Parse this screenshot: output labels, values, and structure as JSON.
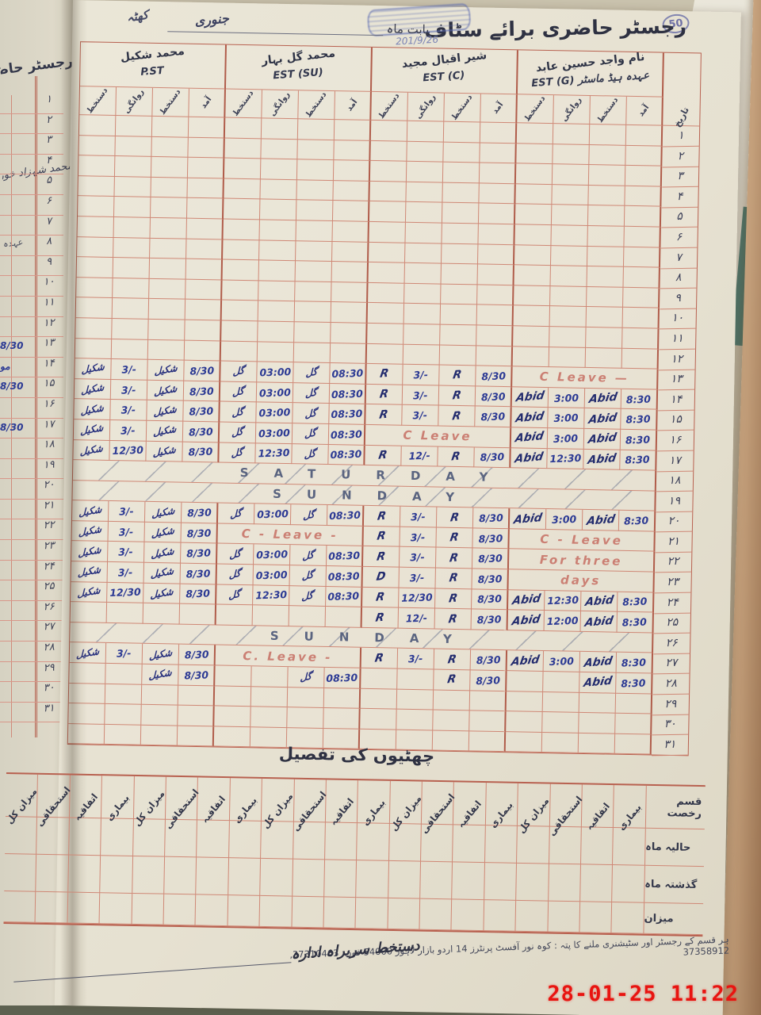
{
  "meta": {
    "camera_timestamp": "28-01-25  11:22"
  },
  "register": {
    "page_number": "50",
    "title": "رجسٹر حاضری برائے سٹاف",
    "month_prefix": "بابت ماہ",
    "month_value": "جنوری",
    "month_extra": "کھٹہ",
    "stamp_date": "201/9/26",
    "date_header": "تاریخ",
    "sub_headers_rtl": [
      "آمد",
      "دستخط",
      "روانگی",
      "دستخط"
    ],
    "staff": [
      {
        "name": "محمد شکیل",
        "designation": "P.ST",
        "sig": "شکیل"
      },
      {
        "name": "محمد گل بہار",
        "designation": "EST (SU)",
        "sig": "گل"
      },
      {
        "name": "شیر اقبال مجید",
        "designation": "EST (C)",
        "sig": "R"
      },
      {
        "name": "واجد حسین عابد",
        "designation": "ہیڈ ماسٹر  EST (G)",
        "sig": "Abid",
        "name_label": "نام",
        "designation_label": "عہدہ"
      }
    ],
    "dates": [
      "۱",
      "۲",
      "۳",
      "۴",
      "۵",
      "۶",
      "۷",
      "۸",
      "۹",
      "۱۰",
      "۱۱",
      "۱۲",
      "۱۳",
      "۱۴",
      "۱۵",
      "۱۶",
      "۱۷",
      "۱۸",
      "۱۹",
      "۲۰",
      "۲۱",
      "۲۲",
      "۲۳",
      "۲۴",
      "۲۵",
      "۲۶",
      "۲۷",
      "۲۸",
      "۲۹",
      "۳۰",
      "۳۱"
    ],
    "rows_by_date": {
      "13": {
        "pst": [
          "شکیل",
          "3/-",
          "شکیل",
          "8/30"
        ],
        "su": [
          "گل",
          "03:00",
          "گل",
          "08:30"
        ],
        "c": [
          "R",
          "3/-",
          "R",
          "8/30"
        ],
        "g": {
          "leave": "C Leave —"
        }
      },
      "14": {
        "pst": [
          "شکیل",
          "3/-",
          "شکیل",
          "8/30"
        ],
        "su": [
          "گل",
          "03:00",
          "گل",
          "08:30"
        ],
        "c": [
          "R",
          "3/-",
          "R",
          "8/30"
        ],
        "g": [
          "Abid",
          "3:00",
          "Abid",
          "8:30"
        ]
      },
      "15": {
        "pst": [
          "شکیل",
          "3/-",
          "شکیل",
          "8/30"
        ],
        "su": [
          "گل",
          "03:00",
          "گل",
          "08:30"
        ],
        "c": [
          "R",
          "3/-",
          "R",
          "8/30"
        ],
        "g": [
          "Abid",
          "3:00",
          "Abid",
          "8:30"
        ]
      },
      "16": {
        "pst": [
          "شکیل",
          "3/-",
          "شکیل",
          "8/30"
        ],
        "su": [
          "گل",
          "03:00",
          "گل",
          "08:30"
        ],
        "c": {
          "leave": "C Leave"
        },
        "g": [
          "Abid",
          "3:00",
          "Abid",
          "8:30"
        ]
      },
      "17": {
        "pst": [
          "شکیل",
          "12/30",
          "شکیل",
          "8/30"
        ],
        "su": [
          "گل",
          "12:30",
          "گل",
          "08:30"
        ],
        "c": [
          "R",
          "12/-",
          "R",
          "8/30"
        ],
        "g": [
          "Abid",
          "12:30",
          "Abid",
          "8:30"
        ]
      },
      "18": {
        "full": "SATURDAY"
      },
      "19": {
        "full": "SUNDAY"
      },
      "20": {
        "pst": [
          "شکیل",
          "3/-",
          "شکیل",
          "8/30"
        ],
        "su": [
          "گل",
          "03:00",
          "گل",
          "08:30"
        ],
        "c": [
          "R",
          "3/-",
          "R",
          "8/30"
        ],
        "g": [
          "Abid",
          "3:00",
          "Abid",
          "8:30"
        ]
      },
      "21": {
        "pst": [
          "شکیل",
          "3/-",
          "شکیل",
          "8/30"
        ],
        "su": {
          "leave": "C - Leave -"
        },
        "c": [
          "R",
          "3/-",
          "R",
          "8/30"
        ],
        "g": {
          "leave": "C - Leave"
        }
      },
      "22": {
        "pst": [
          "شکیل",
          "3/-",
          "شکیل",
          "8/30"
        ],
        "su": [
          "گل",
          "03:00",
          "گل",
          "08:30"
        ],
        "c": [
          "R",
          "3/-",
          "R",
          "8/30"
        ],
        "g": {
          "leave": "For three"
        }
      },
      "23": {
        "pst": [
          "شکیل",
          "3/-",
          "شکیل",
          "8/30"
        ],
        "su": [
          "گل",
          "03:00",
          "گل",
          "08:30"
        ],
        "c": [
          "D",
          "3/-",
          "R",
          "8/30"
        ],
        "g": {
          "leave": "days"
        }
      },
      "24": {
        "pst": [
          "شکیل",
          "12/30",
          "شکیل",
          "8/30"
        ],
        "su": [
          "گل",
          "12:30",
          "گل",
          "08:30"
        ],
        "c": [
          "R",
          "12/30",
          "R",
          "8/30"
        ],
        "g": [
          "Abid",
          "12:30",
          "Abid",
          "8:30"
        ]
      },
      "25": {
        "c": [
          "R",
          "12/-",
          "R",
          "8/30"
        ],
        "g": [
          "Abid",
          "12:00",
          "Abid",
          "8:30"
        ]
      },
      "26": {
        "full": "SUNDAY"
      },
      "27": {
        "pst": [
          "شکیل",
          "3/-",
          "شکیل",
          "8/30"
        ],
        "su": {
          "leave": "C. Leave -"
        },
        "c": [
          "R",
          "3/-",
          "R",
          "8/30"
        ],
        "g": [
          "Abid",
          "3:00",
          "Abid",
          "8:30"
        ]
      },
      "28": {
        "pst": [
          "",
          "",
          "شکیل",
          "8/30"
        ],
        "su": [
          "",
          "",
          "گل",
          "08:30"
        ],
        "c": [
          "",
          "",
          "R",
          "8/30"
        ],
        "g": [
          "",
          "",
          "Abid",
          "8:30"
        ]
      }
    }
  },
  "leaves_table": {
    "title": "چھٹیوں کی تفصیل",
    "type_header": "قسم رخصت",
    "col_headers_rtl": [
      "بیماری",
      "اتفاقیہ",
      "استحقاقی",
      "میزان کل"
    ],
    "groups": 5,
    "row_labels": [
      "حالیہ ماہ",
      "گذشتہ ماہ",
      "میزان"
    ]
  },
  "footer": {
    "sign_label": "دستخط سربراہ ادارہ",
    "printed_line": "ہر قسم کے رجسٹر اور سٹیشنری ملنے کا پتہ : کوہ نور آفسٹ پرنٹرز 14 اردو بازار لاہور 54000 فون: 37310463, 37358912"
  },
  "left_page": {
    "title_fragment": "رجسٹر حاضری برائے سٹاف",
    "name_fragment": "محمد شہزاد خور",
    "designation_fragment": "عہدہ",
    "fragments": [
      {
        "row": 13,
        "text": "8/30"
      },
      {
        "row": 14,
        "text": "مو"
      },
      {
        "row": 15,
        "text": "8/30"
      },
      {
        "row": 17,
        "text": "8/30"
      }
    ]
  },
  "colors": {
    "grid_red": "#cf8876",
    "ink_blue": "#2c3a94",
    "leave_pink": "#cb7f73",
    "timestamp_red": "#e81410",
    "paper": "#e8e4d4"
  }
}
